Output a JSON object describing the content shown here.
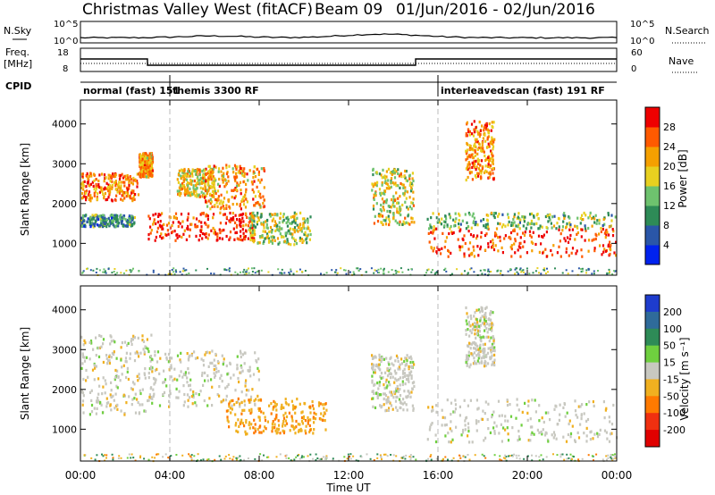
{
  "header": {
    "title": "Christmas Valley West (fitACF)",
    "beam": "Beam 09",
    "date_range": "01/Jun/2016 - 02/Jun/2016"
  },
  "noise_panel": {
    "left_label": "N.Sky",
    "right_label": "N.Search",
    "tick_top": "10^5",
    "tick_bottom": "10^0"
  },
  "freq_panel": {
    "left_label_1": "Freq.",
    "left_label_2": "[MHz]",
    "left_tick_top": "18",
    "left_tick_bottom": "8",
    "right_label": "Nave",
    "right_tick_top": "60",
    "right_tick_bottom": "0"
  },
  "cpid_panel": {
    "label": "CPID",
    "modes": [
      {
        "name": "normal (fast) 151",
        "start_hour": 0,
        "end_hour": 4
      },
      {
        "name": "themis 3300 RF",
        "start_hour": 4,
        "end_hour": 16
      },
      {
        "name": "interleavedscan (fast) 191 RF",
        "start_hour": 16,
        "end_hour": 24
      }
    ],
    "rf_labels": [
      "RF"
    ]
  },
  "x_axis": {
    "label": "Time UT",
    "ticks": [
      "00:00",
      "04:00",
      "08:00",
      "12:00",
      "16:00",
      "20:00",
      "00:00"
    ]
  },
  "power_panel": {
    "ylabel": "Slant Range [km]",
    "yticks": [
      "1000",
      "2000",
      "3000",
      "4000"
    ],
    "colorbar_label": "Power [dB]",
    "colorbar_ticks": [
      "4",
      "8",
      "12",
      "16",
      "20",
      "24",
      "28"
    ],
    "colors": [
      "#0022ee",
      "#2a56a8",
      "#2e8b57",
      "#6ec26e",
      "#e8d020",
      "#f5a000",
      "#ff5a00",
      "#ee0000"
    ]
  },
  "velocity_panel": {
    "ylabel": "Slant Range [km]",
    "yticks": [
      "1000",
      "2000",
      "3000",
      "4000"
    ],
    "colorbar_label": "Velocity [m s⁻¹]",
    "colorbar_ticks": [
      "200",
      "100",
      "50",
      "15",
      "-15",
      "-50",
      "-100",
      "-200"
    ],
    "colors": [
      "#1e3ccd",
      "#2f6b9a",
      "#2e8b57",
      "#6fcf3f",
      "#c8c8c0",
      "#f0b020",
      "#ff7a00",
      "#f03010",
      "#e00000"
    ]
  },
  "chart_data": {
    "type": "heatmap",
    "title": "Christmas Valley West (fitACF) Beam 09 01/Jun/2016 - 02/Jun/2016",
    "xlabel": "Time UT",
    "ylabel": "Slant Range [km]",
    "xlim_hours": [
      0,
      24
    ],
    "ylim_km": [
      200,
      4600
    ],
    "frequency_mhz": {
      "hours": [
        0,
        3,
        3,
        15,
        15,
        24
      ],
      "values": [
        14,
        14,
        10.5,
        10.5,
        14,
        14
      ]
    },
    "power_regions": [
      {
        "t0": 0.0,
        "t1": 2.6,
        "r0": 2100,
        "r1": 2800,
        "dB": 24
      },
      {
        "t0": 0.0,
        "t1": 2.4,
        "r0": 1450,
        "r1": 1750,
        "dB": 10
      },
      {
        "t0": 2.6,
        "t1": 3.2,
        "r0": 2700,
        "r1": 3300,
        "dB": 22
      },
      {
        "t0": 3.0,
        "t1": 7.8,
        "r0": 1100,
        "r1": 1800,
        "dB": 28
      },
      {
        "t0": 4.3,
        "t1": 6.0,
        "r0": 2200,
        "r1": 2900,
        "dB": 20
      },
      {
        "t0": 5.5,
        "t1": 8.2,
        "r0": 1900,
        "r1": 3000,
        "dB": 22
      },
      {
        "t0": 7.5,
        "t1": 10.3,
        "r0": 1000,
        "r1": 1800,
        "dB": 16
      },
      {
        "t0": 13.0,
        "t1": 14.9,
        "r0": 1500,
        "r1": 2900,
        "dB": 18
      },
      {
        "t0": 15.5,
        "t1": 24.0,
        "r0": 700,
        "r1": 1400,
        "dB": 28
      },
      {
        "t0": 15.5,
        "t1": 24.0,
        "r0": 1400,
        "r1": 1800,
        "dB": 14
      },
      {
        "t0": 17.2,
        "t1": 18.5,
        "r0": 2600,
        "r1": 4100,
        "dB": 24
      }
    ],
    "velocity_regions": [
      {
        "t0": 0.0,
        "t1": 3.2,
        "r0": 1400,
        "r1": 3400,
        "ms": 0
      },
      {
        "t0": 3.0,
        "t1": 8.0,
        "r0": 1600,
        "r1": 3000,
        "ms": 0
      },
      {
        "t0": 6.5,
        "t1": 11.0,
        "r0": 900,
        "r1": 1800,
        "ms": -40
      },
      {
        "t0": 13.0,
        "t1": 14.9,
        "r0": 1500,
        "r1": 2900,
        "ms": 0
      },
      {
        "t0": 15.5,
        "t1": 24.0,
        "r0": 700,
        "r1": 1800,
        "ms": 0
      },
      {
        "t0": 17.2,
        "t1": 18.5,
        "r0": 2600,
        "r1": 4100,
        "ms": 0
      }
    ]
  }
}
